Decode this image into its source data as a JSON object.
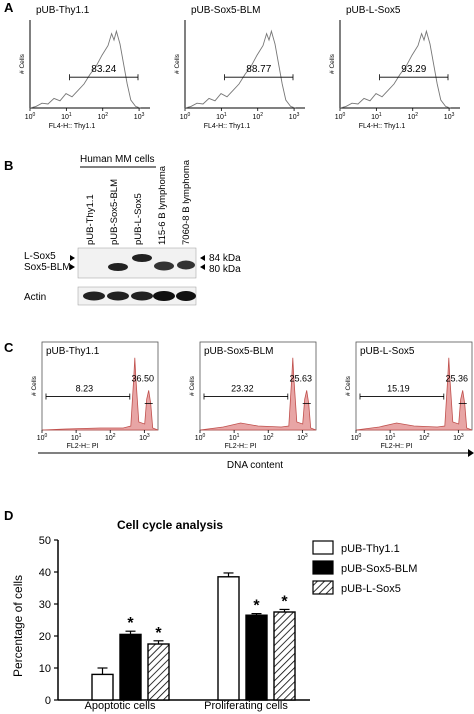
{
  "panel_a": {
    "letter": "A",
    "x_axis_label": "FL4-H:: Thy1.1",
    "y_axis_label": "# Cells",
    "x_ticks": [
      "10^0",
      "10^1",
      "10^2",
      "10^3"
    ],
    "plots": [
      {
        "title": "pUB-Thy1.1",
        "value": "83.24"
      },
      {
        "title": "pUB-Sox5-BLM",
        "value": "88.77"
      },
      {
        "title": "pUB-L-Sox5",
        "value": "93.29"
      }
    ]
  },
  "panel_b": {
    "letter": "B",
    "group_label": "Human MM cells",
    "lanes": [
      "pUB-Thy1.1",
      "pUB-Sox5-BLM",
      "pUB-L-Sox5",
      "115-6 B lymphoma",
      "7060-8 B lymphoma"
    ],
    "left_labels": [
      "L-Sox5",
      "Sox5-BLM"
    ],
    "right_labels": [
      "84 kDa",
      "80 kDa"
    ],
    "loading_label": "Actin"
  },
  "panel_c": {
    "letter": "C",
    "x_axis_label": "FL2-H:: PI",
    "y_axis_label": "# Cells",
    "x_ticks": [
      "10^0",
      "10^1",
      "10^2",
      "10^3"
    ],
    "bottom_axis_label": "DNA content",
    "plots": [
      {
        "title": "pUB-Thy1.1",
        "left_value": "8.23",
        "right_value": "36.50"
      },
      {
        "title": "pUB-Sox5-BLM",
        "left_value": "23.32",
        "right_value": "25.63"
      },
      {
        "title": "pUB-L-Sox5",
        "left_value": "15.19",
        "right_value": "25.36"
      }
    ]
  },
  "panel_d": {
    "letter": "D",
    "significance_marker": "*"
  },
  "chart_data": {
    "type": "bar",
    "title": "Cell cycle analysis",
    "ylabel": "Percentage of cells",
    "xlabel": "",
    "categories": [
      "Apoptotic cells",
      "Proliferating cells"
    ],
    "ylim": [
      0,
      50
    ],
    "yticks": [
      "0",
      "10",
      "20",
      "30",
      "40",
      "50"
    ],
    "series": [
      {
        "name": "pUB-Thy1.1",
        "values": [
          8,
          38.5
        ],
        "errors": [
          2,
          1.2
        ],
        "significant": [
          false,
          false
        ],
        "fill": "#ffffff"
      },
      {
        "name": "pUB-Sox5-BLM",
        "values": [
          20.5,
          26.5
        ],
        "errors": [
          1,
          0.5
        ],
        "significant": [
          true,
          true
        ],
        "fill": "#000000"
      },
      {
        "name": "pUB-L-Sox5",
        "values": [
          17.5,
          27.5
        ],
        "errors": [
          1,
          0.8
        ],
        "significant": [
          true,
          true
        ],
        "fill": "hatched"
      }
    ],
    "legend_position": "top-right"
  }
}
